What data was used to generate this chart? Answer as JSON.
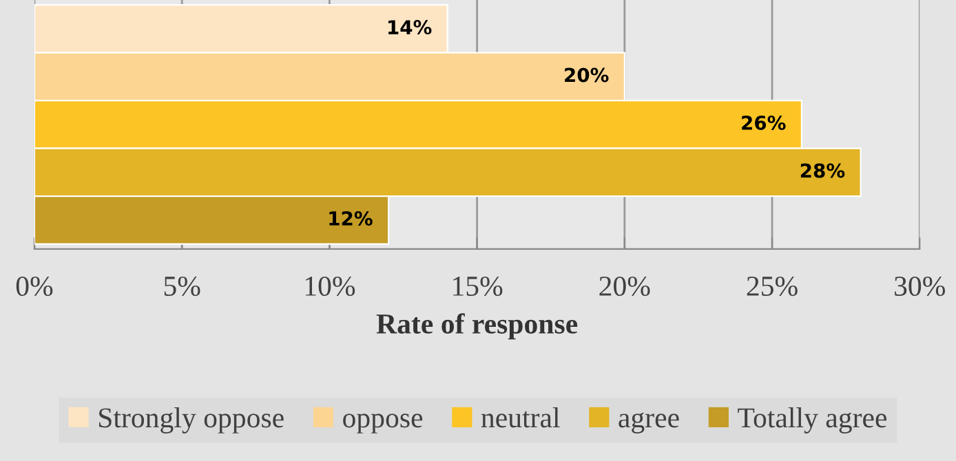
{
  "chart_data": {
    "type": "bar",
    "orientation": "horizontal",
    "xlabel": "Rate of response",
    "categories": [
      null
    ],
    "series": [
      {
        "name": "Strongly oppose",
        "color": "#fde5c3",
        "values": [
          14
        ],
        "value_labels": [
          "14%"
        ]
      },
      {
        "name": "oppose",
        "color": "#fcd592",
        "values": [
          20
        ],
        "value_labels": [
          "20%"
        ]
      },
      {
        "name": "neutral",
        "color": "#fcc424",
        "values": [
          26
        ],
        "value_labels": [
          "26%"
        ]
      },
      {
        "name": "agree",
        "color": "#e2b426",
        "values": [
          28
        ],
        "value_labels": [
          "28%"
        ]
      },
      {
        "name": "Totally agree",
        "color": "#c49c26",
        "values": [
          12
        ],
        "value_labels": [
          "12%"
        ]
      }
    ],
    "xlim": [
      0,
      30
    ],
    "xticks": [
      {
        "value": 0,
        "label": "0%"
      },
      {
        "value": 5,
        "label": "5%"
      },
      {
        "value": 10,
        "label": "10%"
      },
      {
        "value": 15,
        "label": "15%"
      },
      {
        "value": 20,
        "label": "20%"
      },
      {
        "value": 25,
        "label": "25%"
      },
      {
        "value": 30,
        "label": "30%"
      }
    ],
    "grid": "x",
    "legend": "bottom"
  }
}
